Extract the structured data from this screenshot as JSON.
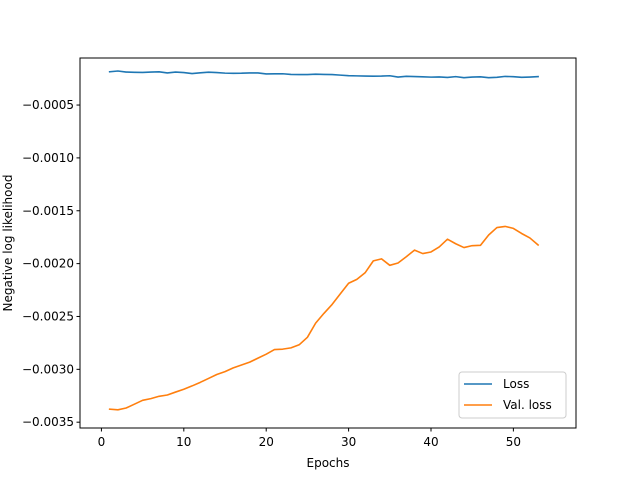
{
  "chart_data": {
    "type": "line",
    "title": "",
    "xlabel": "Epochs",
    "ylabel": "Negative log likelihood",
    "xlim": [
      -2.6,
      57.6
    ],
    "ylim": [
      -0.003555,
      -5.5e-05
    ],
    "xticks": [
      0,
      10,
      20,
      30,
      40,
      50
    ],
    "xtick_labels": [
      "0",
      "10",
      "20",
      "30",
      "40",
      "50"
    ],
    "yticks": [
      -0.0035,
      -0.003,
      -0.0025,
      -0.002,
      -0.0015,
      -0.001,
      -0.0005
    ],
    "ytick_labels": [
      "−0.0035",
      "−0.0030",
      "−0.0025",
      "−0.0020",
      "−0.0015",
      "−0.0010",
      "−0.0005"
    ],
    "grid": false,
    "legend_position": "lower-right",
    "x": [
      1,
      2,
      3,
      4,
      5,
      6,
      7,
      8,
      9,
      10,
      11,
      12,
      13,
      14,
      15,
      16,
      17,
      18,
      19,
      20,
      21,
      22,
      23,
      24,
      25,
      26,
      27,
      28,
      29,
      30,
      31,
      32,
      33,
      34,
      35,
      36,
      37,
      38,
      39,
      40,
      41,
      42,
      43,
      44,
      45,
      46,
      47,
      48,
      49,
      50,
      51,
      52,
      53
    ],
    "series": [
      {
        "name": "Loss",
        "color": "#1f77b4",
        "values": [
          -0.000185,
          -0.000178,
          -0.000188,
          -0.00019,
          -0.000192,
          -0.000188,
          -0.000186,
          -0.000196,
          -0.000188,
          -0.000193,
          -0.000202,
          -0.000195,
          -0.000189,
          -0.000193,
          -0.000198,
          -0.0002,
          -0.000199,
          -0.000196,
          -0.000196,
          -0.000206,
          -0.000205,
          -0.000204,
          -0.00021,
          -0.000212,
          -0.000212,
          -0.000208,
          -0.00021,
          -0.000212,
          -0.000217,
          -0.000222,
          -0.000224,
          -0.000226,
          -0.000227,
          -0.000226,
          -0.000223,
          -0.000235,
          -0.000228,
          -0.000231,
          -0.000233,
          -0.000236,
          -0.000234,
          -0.000239,
          -0.000231,
          -0.000241,
          -0.000235,
          -0.000233,
          -0.000241,
          -0.000238,
          -0.000229,
          -0.000232,
          -0.000238,
          -0.000235,
          -0.000231
        ]
      },
      {
        "name": "Val. loss",
        "color": "#ff7f0e",
        "values": [
          -0.003377,
          -0.003383,
          -0.003366,
          -0.00333,
          -0.003293,
          -0.003277,
          -0.003255,
          -0.003243,
          -0.003215,
          -0.003188,
          -0.003157,
          -0.003123,
          -0.003086,
          -0.003049,
          -0.003022,
          -0.002986,
          -0.002959,
          -0.002932,
          -0.002894,
          -0.002857,
          -0.002813,
          -0.002809,
          -0.002797,
          -0.002768,
          -0.002697,
          -0.002563,
          -0.002471,
          -0.002386,
          -0.002285,
          -0.002186,
          -0.002149,
          -0.002087,
          -0.001974,
          -0.001955,
          -0.002016,
          -0.001994,
          -0.001935,
          -0.001872,
          -0.001905,
          -0.00189,
          -0.001842,
          -0.001769,
          -0.001812,
          -0.001848,
          -0.00183,
          -0.001827,
          -0.001729,
          -0.001659,
          -0.001648,
          -0.001667,
          -0.001715,
          -0.001757,
          -0.001824
        ]
      }
    ]
  }
}
